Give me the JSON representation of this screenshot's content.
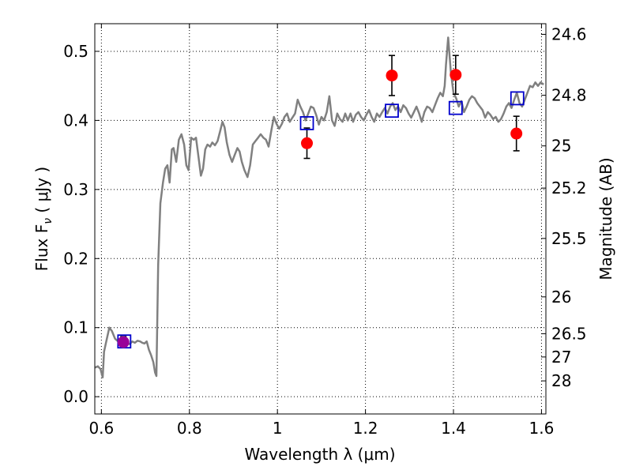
{
  "chart_data": {
    "type": "line",
    "xlabel": "Wavelength  λ (μm)",
    "ylabel": "Flux  F",
    "ylabel_sub": "ν",
    "ylabel_unit": "  ( μJy )",
    "ylabel_right": "Magnitude (AB)",
    "xlim": [
      0.585,
      1.61
    ],
    "ylim": [
      -0.025,
      0.54
    ],
    "grid": true,
    "grid_style": "dotted",
    "x_ticks": [
      0.6,
      0.8,
      1.0,
      1.2,
      1.4,
      1.6
    ],
    "x_tick_labels": [
      "0.6",
      "0.8",
      "1",
      "1.2",
      "1.4",
      "1.6"
    ],
    "y_ticks": [
      0.0,
      0.1,
      0.2,
      0.3,
      0.4,
      0.5
    ],
    "y_tick_labels": [
      "0.0",
      "0.1",
      "0.2",
      "0.3",
      "0.4",
      "0.5"
    ],
    "right_ticks": [
      {
        "flux": 0.5246,
        "label": "24.6"
      },
      {
        "flux": 0.4364,
        "label": "24.8"
      },
      {
        "flux": 0.3631,
        "label": "25"
      },
      {
        "flux": 0.302,
        "label": "25.2"
      },
      {
        "flux": 0.2291,
        "label": "25.5"
      },
      {
        "flux": 0.1445,
        "label": "26"
      },
      {
        "flux": 0.0912,
        "label": "26.5"
      },
      {
        "flux": 0.0575,
        "label": "27"
      },
      {
        "flux": 0.0229,
        "label": "28"
      }
    ],
    "series": [
      {
        "kind": "line",
        "color": "#808080",
        "x": [
          0.585,
          0.592,
          0.598,
          0.603,
          0.606,
          0.611,
          0.618,
          0.624,
          0.631,
          0.638,
          0.645,
          0.652,
          0.658,
          0.664,
          0.67,
          0.676,
          0.682,
          0.688,
          0.693,
          0.698,
          0.703,
          0.708,
          0.713,
          0.718,
          0.722,
          0.725,
          0.729,
          0.734,
          0.74,
          0.745,
          0.75,
          0.755,
          0.76,
          0.764,
          0.77,
          0.776,
          0.782,
          0.788,
          0.793,
          0.798,
          0.804,
          0.81,
          0.815,
          0.821,
          0.826,
          0.831,
          0.836,
          0.841,
          0.847,
          0.852,
          0.858,
          0.864,
          0.87,
          0.875,
          0.88,
          0.885,
          0.891,
          0.897,
          0.903,
          0.909,
          0.914,
          0.919,
          0.925,
          0.932,
          0.938,
          0.944,
          0.95,
          0.956,
          0.962,
          0.968,
          0.974,
          0.98,
          0.986,
          0.992,
          0.998,
          1.004,
          1.01,
          1.016,
          1.022,
          1.028,
          1.034,
          1.04,
          1.046,
          1.052,
          1.058,
          1.064,
          1.07,
          1.076,
          1.082,
          1.088,
          1.094,
          1.1,
          1.106,
          1.112,
          1.118,
          1.124,
          1.13,
          1.136,
          1.142,
          1.148,
          1.154,
          1.16,
          1.166,
          1.172,
          1.178,
          1.184,
          1.19,
          1.196,
          1.202,
          1.208,
          1.214,
          1.22,
          1.226,
          1.232,
          1.238,
          1.244,
          1.25,
          1.256,
          1.262,
          1.268,
          1.274,
          1.28,
          1.286,
          1.292,
          1.298,
          1.304,
          1.31,
          1.316,
          1.322,
          1.328,
          1.334,
          1.34,
          1.346,
          1.352,
          1.358,
          1.364,
          1.37,
          1.376,
          1.38,
          1.383,
          1.388,
          1.394,
          1.4,
          1.406,
          1.412,
          1.418,
          1.424,
          1.43,
          1.436,
          1.442,
          1.448,
          1.454,
          1.46,
          1.466,
          1.472,
          1.478,
          1.484,
          1.49,
          1.496,
          1.502,
          1.508,
          1.514,
          1.52,
          1.526,
          1.532,
          1.538,
          1.544,
          1.55,
          1.556,
          1.562,
          1.568,
          1.574,
          1.58,
          1.586,
          1.592,
          1.598,
          1.605
        ],
        "y": [
          0.042,
          0.044,
          0.04,
          0.028,
          0.065,
          0.08,
          0.1,
          0.095,
          0.084,
          0.08,
          0.082,
          0.08,
          0.078,
          0.076,
          0.08,
          0.078,
          0.081,
          0.08,
          0.078,
          0.077,
          0.08,
          0.068,
          0.06,
          0.05,
          0.035,
          0.03,
          0.19,
          0.28,
          0.31,
          0.33,
          0.335,
          0.31,
          0.358,
          0.36,
          0.34,
          0.372,
          0.38,
          0.365,
          0.335,
          0.328,
          0.375,
          0.372,
          0.375,
          0.345,
          0.32,
          0.33,
          0.358,
          0.365,
          0.362,
          0.368,
          0.364,
          0.37,
          0.385,
          0.398,
          0.39,
          0.368,
          0.35,
          0.34,
          0.35,
          0.36,
          0.355,
          0.34,
          0.328,
          0.318,
          0.335,
          0.365,
          0.37,
          0.375,
          0.38,
          0.375,
          0.372,
          0.362,
          0.385,
          0.405,
          0.395,
          0.388,
          0.395,
          0.405,
          0.41,
          0.398,
          0.404,
          0.41,
          0.43,
          0.42,
          0.412,
          0.4,
          0.41,
          0.42,
          0.418,
          0.408,
          0.394,
          0.405,
          0.4,
          0.412,
          0.435,
          0.4,
          0.392,
          0.41,
          0.402,
          0.398,
          0.41,
          0.4,
          0.41,
          0.398,
          0.408,
          0.412,
          0.405,
          0.4,
          0.408,
          0.415,
          0.405,
          0.398,
          0.41,
          0.405,
          0.412,
          0.418,
          0.41,
          0.42,
          0.425,
          0.415,
          0.42,
          0.412,
          0.422,
          0.418,
          0.41,
          0.404,
          0.412,
          0.42,
          0.41,
          0.398,
          0.412,
          0.42,
          0.418,
          0.412,
          0.422,
          0.432,
          0.44,
          0.435,
          0.45,
          0.48,
          0.52,
          0.47,
          0.44,
          0.432,
          0.42,
          0.428,
          0.412,
          0.42,
          0.43,
          0.435,
          0.432,
          0.425,
          0.42,
          0.415,
          0.404,
          0.412,
          0.408,
          0.402,
          0.405,
          0.398,
          0.402,
          0.41,
          0.42,
          0.425,
          0.418,
          0.43,
          0.44,
          0.425,
          0.42,
          0.43,
          0.44,
          0.45,
          0.448,
          0.455,
          0.45,
          0.455,
          0.452
        ]
      },
      {
        "kind": "model_photometry",
        "marker": "open-square",
        "color": "#0000cc",
        "x": [
          0.652,
          1.067,
          1.26,
          1.405,
          1.545
        ],
        "y": [
          0.08,
          0.396,
          0.414,
          0.418,
          0.432
        ]
      },
      {
        "kind": "observed_photometry",
        "marker": "filled-circle",
        "color": "#ff0000",
        "x": [
          0.65,
          1.067,
          1.26,
          1.405,
          1.543
        ],
        "y": [
          0.079,
          0.367,
          0.465,
          0.466,
          0.381
        ],
        "yerr": [
          0.008,
          0.022,
          0.029,
          0.028,
          0.025
        ],
        "overlap_color": "#990099"
      }
    ]
  }
}
